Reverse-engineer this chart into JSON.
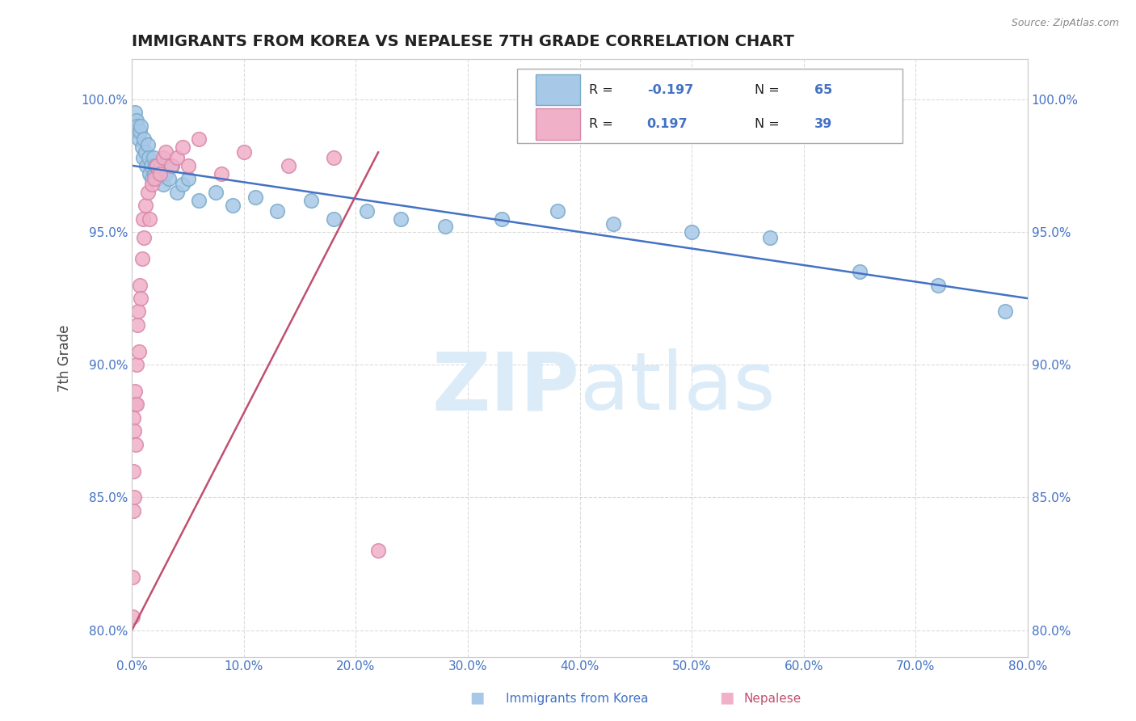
{
  "title": "IMMIGRANTS FROM KOREA VS NEPALESE 7TH GRADE CORRELATION CHART",
  "source_text": "Source: ZipAtlas.com",
  "ylabel": "7th Grade",
  "xlim": [
    0.0,
    80.0
  ],
  "ylim": [
    79.0,
    101.5
  ],
  "xticks": [
    0.0,
    10.0,
    20.0,
    30.0,
    40.0,
    50.0,
    60.0,
    70.0,
    80.0
  ],
  "yticks": [
    80.0,
    85.0,
    90.0,
    95.0,
    100.0
  ],
  "ytick_labels": [
    "80.0%",
    "85.0%",
    "90.0%",
    "95.0%",
    "100.0%"
  ],
  "xtick_labels": [
    "0.0%",
    "10.0%",
    "20.0%",
    "30.0%",
    "40.0%",
    "50.0%",
    "60.0%",
    "70.0%",
    "80.0%"
  ],
  "korea_color": "#a8c8e8",
  "korea_edge": "#7aaac8",
  "nepalese_color": "#f0b0c8",
  "nepalese_edge": "#d888a8",
  "korea_line_color": "#4472c4",
  "nepalese_line_color": "#c05070",
  "watermark_color": "#d8eaf8",
  "background_color": "#ffffff",
  "title_color": "#222222",
  "axis_label_color": "#444444",
  "tick_color": "#4472c4",
  "grid_color": "#cccccc",
  "korea_x": [
    0.2,
    0.3,
    0.4,
    0.5,
    0.6,
    0.7,
    0.8,
    0.9,
    1.0,
    1.1,
    1.2,
    1.3,
    1.4,
    1.5,
    1.6,
    1.7,
    1.8,
    1.9,
    2.0,
    2.1,
    2.2,
    2.4,
    2.6,
    2.8,
    3.0,
    3.3,
    3.6,
    4.0,
    4.5,
    5.0,
    6.0,
    7.5,
    9.0,
    11.0,
    13.0,
    16.0,
    18.0,
    21.0,
    24.0,
    28.0,
    33.0,
    38.0,
    43.0,
    50.0,
    57.0,
    65.0,
    72.0,
    78.0
  ],
  "korea_y": [
    98.8,
    99.5,
    99.2,
    99.0,
    98.5,
    98.8,
    99.0,
    98.2,
    97.8,
    98.5,
    98.0,
    97.5,
    98.3,
    97.8,
    97.2,
    97.5,
    97.0,
    97.8,
    97.2,
    97.5,
    97.0,
    97.3,
    97.5,
    96.8,
    97.2,
    97.0,
    97.5,
    96.5,
    96.8,
    97.0,
    96.2,
    96.5,
    96.0,
    96.3,
    95.8,
    96.2,
    95.5,
    95.8,
    95.5,
    95.2,
    95.5,
    95.8,
    95.3,
    95.0,
    94.8,
    93.5,
    93.0,
    92.0
  ],
  "nepalese_x": [
    0.05,
    0.08,
    0.1,
    0.12,
    0.15,
    0.18,
    0.2,
    0.25,
    0.3,
    0.35,
    0.4,
    0.45,
    0.5,
    0.55,
    0.6,
    0.7,
    0.8,
    0.9,
    1.0,
    1.1,
    1.2,
    1.4,
    1.6,
    1.8,
    2.0,
    2.2,
    2.5,
    2.8,
    3.0,
    3.5,
    4.0,
    4.5,
    5.0,
    6.0,
    8.0,
    10.0,
    14.0,
    18.0,
    22.0
  ],
  "nepalese_y": [
    80.5,
    82.0,
    88.0,
    84.5,
    86.0,
    87.5,
    85.0,
    88.5,
    89.0,
    87.0,
    90.0,
    88.5,
    91.5,
    92.0,
    90.5,
    93.0,
    92.5,
    94.0,
    95.5,
    94.8,
    96.0,
    96.5,
    95.5,
    96.8,
    97.0,
    97.5,
    97.2,
    97.8,
    98.0,
    97.5,
    97.8,
    98.2,
    97.5,
    98.5,
    97.2,
    98.0,
    97.5,
    97.8,
    83.0
  ],
  "korea_line_x": [
    0.0,
    80.0
  ],
  "korea_line_y": [
    97.5,
    92.5
  ],
  "nepalese_line_x": [
    0.0,
    22.0
  ],
  "nepalese_line_y": [
    80.0,
    98.0
  ]
}
